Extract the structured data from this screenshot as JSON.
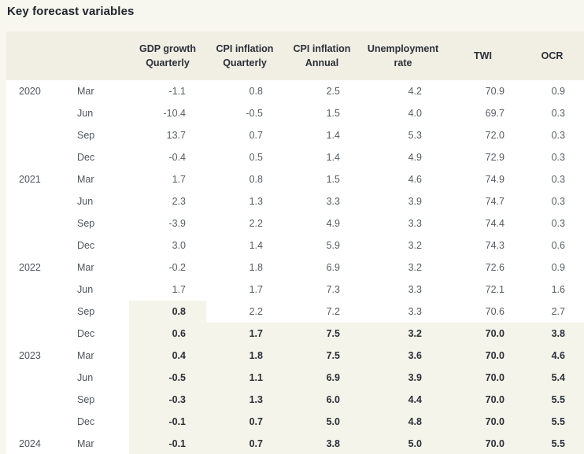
{
  "title": "Key forecast variables",
  "colors": {
    "page_bg": "#f7f6ef",
    "header_bg": "#f1efe4",
    "row_bg": "#ffffff",
    "forecast_highlight_bg": "#f5f4ea",
    "title_text": "#20252d",
    "header_text": "#2a2f38",
    "body_text": "#575c64",
    "forecast_text": "#2a2f38"
  },
  "table": {
    "header": [
      {
        "key": "gdp-growth-quarterly",
        "line1": "GDP growth",
        "line2": "Quarterly"
      },
      {
        "key": "cpi-inflation-quarterly",
        "line1": "CPI inflation",
        "line2": "Quarterly"
      },
      {
        "key": "cpi-inflation-annual",
        "line1": "CPI inflation",
        "line2": "Annual"
      },
      {
        "key": "unemployment-rate",
        "line1": "Unemployment",
        "line2": "rate"
      },
      {
        "key": "twi",
        "line1": "TWI",
        "line2": ""
      },
      {
        "key": "ocr",
        "line1": "OCR",
        "line2": ""
      }
    ],
    "rows": [
      {
        "year": "2020",
        "month": "Mar",
        "values": [
          "-1.1",
          "0.8",
          "2.5",
          "4.2",
          "70.9",
          "0.9"
        ],
        "forecast_cols": 0
      },
      {
        "year": "",
        "month": "Jun",
        "values": [
          "-10.4",
          "-0.5",
          "1.5",
          "4.0",
          "69.7",
          "0.3"
        ],
        "forecast_cols": 0
      },
      {
        "year": "",
        "month": "Sep",
        "values": [
          "13.7",
          "0.7",
          "1.4",
          "5.3",
          "72.0",
          "0.3"
        ],
        "forecast_cols": 0
      },
      {
        "year": "",
        "month": "Dec",
        "values": [
          "-0.4",
          "0.5",
          "1.4",
          "4.9",
          "72.9",
          "0.3"
        ],
        "forecast_cols": 0
      },
      {
        "year": "2021",
        "month": "Mar",
        "values": [
          "1.7",
          "0.8",
          "1.5",
          "4.6",
          "74.9",
          "0.3"
        ],
        "forecast_cols": 0
      },
      {
        "year": "",
        "month": "Jun",
        "values": [
          "2.3",
          "1.3",
          "3.3",
          "3.9",
          "74.7",
          "0.3"
        ],
        "forecast_cols": 0
      },
      {
        "year": "",
        "month": "Sep",
        "values": [
          "-3.9",
          "2.2",
          "4.9",
          "3.3",
          "74.4",
          "0.3"
        ],
        "forecast_cols": 0
      },
      {
        "year": "",
        "month": "Dec",
        "values": [
          "3.0",
          "1.4",
          "5.9",
          "3.2",
          "74.3",
          "0.6"
        ],
        "forecast_cols": 0
      },
      {
        "year": "2022",
        "month": "Mar",
        "values": [
          "-0.2",
          "1.8",
          "6.9",
          "3.2",
          "72.6",
          "0.9"
        ],
        "forecast_cols": 0
      },
      {
        "year": "",
        "month": "Jun",
        "values": [
          "1.7",
          "1.7",
          "7.3",
          "3.3",
          "72.1",
          "1.6"
        ],
        "forecast_cols": 0
      },
      {
        "year": "",
        "month": "Sep",
        "values": [
          "0.8",
          "2.2",
          "7.2",
          "3.3",
          "70.6",
          "2.7"
        ],
        "forecast_cols": 1
      },
      {
        "year": "",
        "month": "Dec",
        "values": [
          "0.6",
          "1.7",
          "7.5",
          "3.2",
          "70.0",
          "3.8"
        ],
        "forecast_cols": 6
      },
      {
        "year": "2023",
        "month": "Mar",
        "values": [
          "0.4",
          "1.8",
          "7.5",
          "3.6",
          "70.0",
          "4.6"
        ],
        "forecast_cols": 6
      },
      {
        "year": "",
        "month": "Jun",
        "values": [
          "-0.5",
          "1.1",
          "6.9",
          "3.9",
          "70.0",
          "5.4"
        ],
        "forecast_cols": 6
      },
      {
        "year": "",
        "month": "Sep",
        "values": [
          "-0.3",
          "1.3",
          "6.0",
          "4.4",
          "70.0",
          "5.5"
        ],
        "forecast_cols": 6
      },
      {
        "year": "",
        "month": "Dec",
        "values": [
          "-0.1",
          "0.7",
          "5.0",
          "4.8",
          "70.0",
          "5.5"
        ],
        "forecast_cols": 6
      },
      {
        "year": "2024",
        "month": "Mar",
        "values": [
          "-0.1",
          "0.7",
          "3.8",
          "5.0",
          "70.0",
          "5.5"
        ],
        "forecast_cols": 6
      }
    ]
  },
  "chart_data": {
    "type": "table",
    "title": "Key forecast variables",
    "x": [
      "2020 Mar",
      "2020 Jun",
      "2020 Sep",
      "2020 Dec",
      "2021 Mar",
      "2021 Jun",
      "2021 Sep",
      "2021 Dec",
      "2022 Mar",
      "2022 Jun",
      "2022 Sep",
      "2022 Dec",
      "2023 Mar",
      "2023 Jun",
      "2023 Sep",
      "2023 Dec",
      "2024 Mar"
    ],
    "series": [
      {
        "name": "GDP growth Quarterly",
        "values": [
          -1.1,
          -10.4,
          13.7,
          -0.4,
          1.7,
          2.3,
          -3.9,
          3.0,
          -0.2,
          1.7,
          0.8,
          0.6,
          0.4,
          -0.5,
          -0.3,
          -0.1,
          -0.1
        ]
      },
      {
        "name": "CPI inflation Quarterly",
        "values": [
          0.8,
          -0.5,
          0.7,
          0.5,
          0.8,
          1.3,
          2.2,
          1.4,
          1.8,
          1.7,
          2.2,
          1.7,
          1.8,
          1.1,
          1.3,
          0.7,
          0.7
        ]
      },
      {
        "name": "CPI inflation Annual",
        "values": [
          2.5,
          1.5,
          1.4,
          1.4,
          1.5,
          3.3,
          4.9,
          5.9,
          6.9,
          7.3,
          7.2,
          7.5,
          7.5,
          6.9,
          6.0,
          5.0,
          3.8
        ]
      },
      {
        "name": "Unemployment rate",
        "values": [
          4.2,
          4.0,
          5.3,
          4.9,
          4.6,
          3.9,
          3.3,
          3.2,
          3.2,
          3.3,
          3.3,
          3.2,
          3.6,
          3.9,
          4.4,
          4.8,
          5.0
        ]
      },
      {
        "name": "TWI",
        "values": [
          70.9,
          69.7,
          72.0,
          72.9,
          74.9,
          74.7,
          74.4,
          74.3,
          72.6,
          72.1,
          70.6,
          70.0,
          70.0,
          70.0,
          70.0,
          70.0,
          70.0
        ]
      },
      {
        "name": "OCR",
        "values": [
          0.9,
          0.3,
          0.3,
          0.3,
          0.3,
          0.3,
          0.3,
          0.6,
          0.9,
          1.6,
          2.7,
          3.8,
          4.6,
          5.4,
          5.5,
          5.5,
          5.5
        ]
      }
    ],
    "forecast_highlight": {
      "GDP growth Quarterly starts": "2022 Sep",
      "all other columns start": "2022 Dec",
      "style": "bold text on shaded cream background"
    }
  }
}
